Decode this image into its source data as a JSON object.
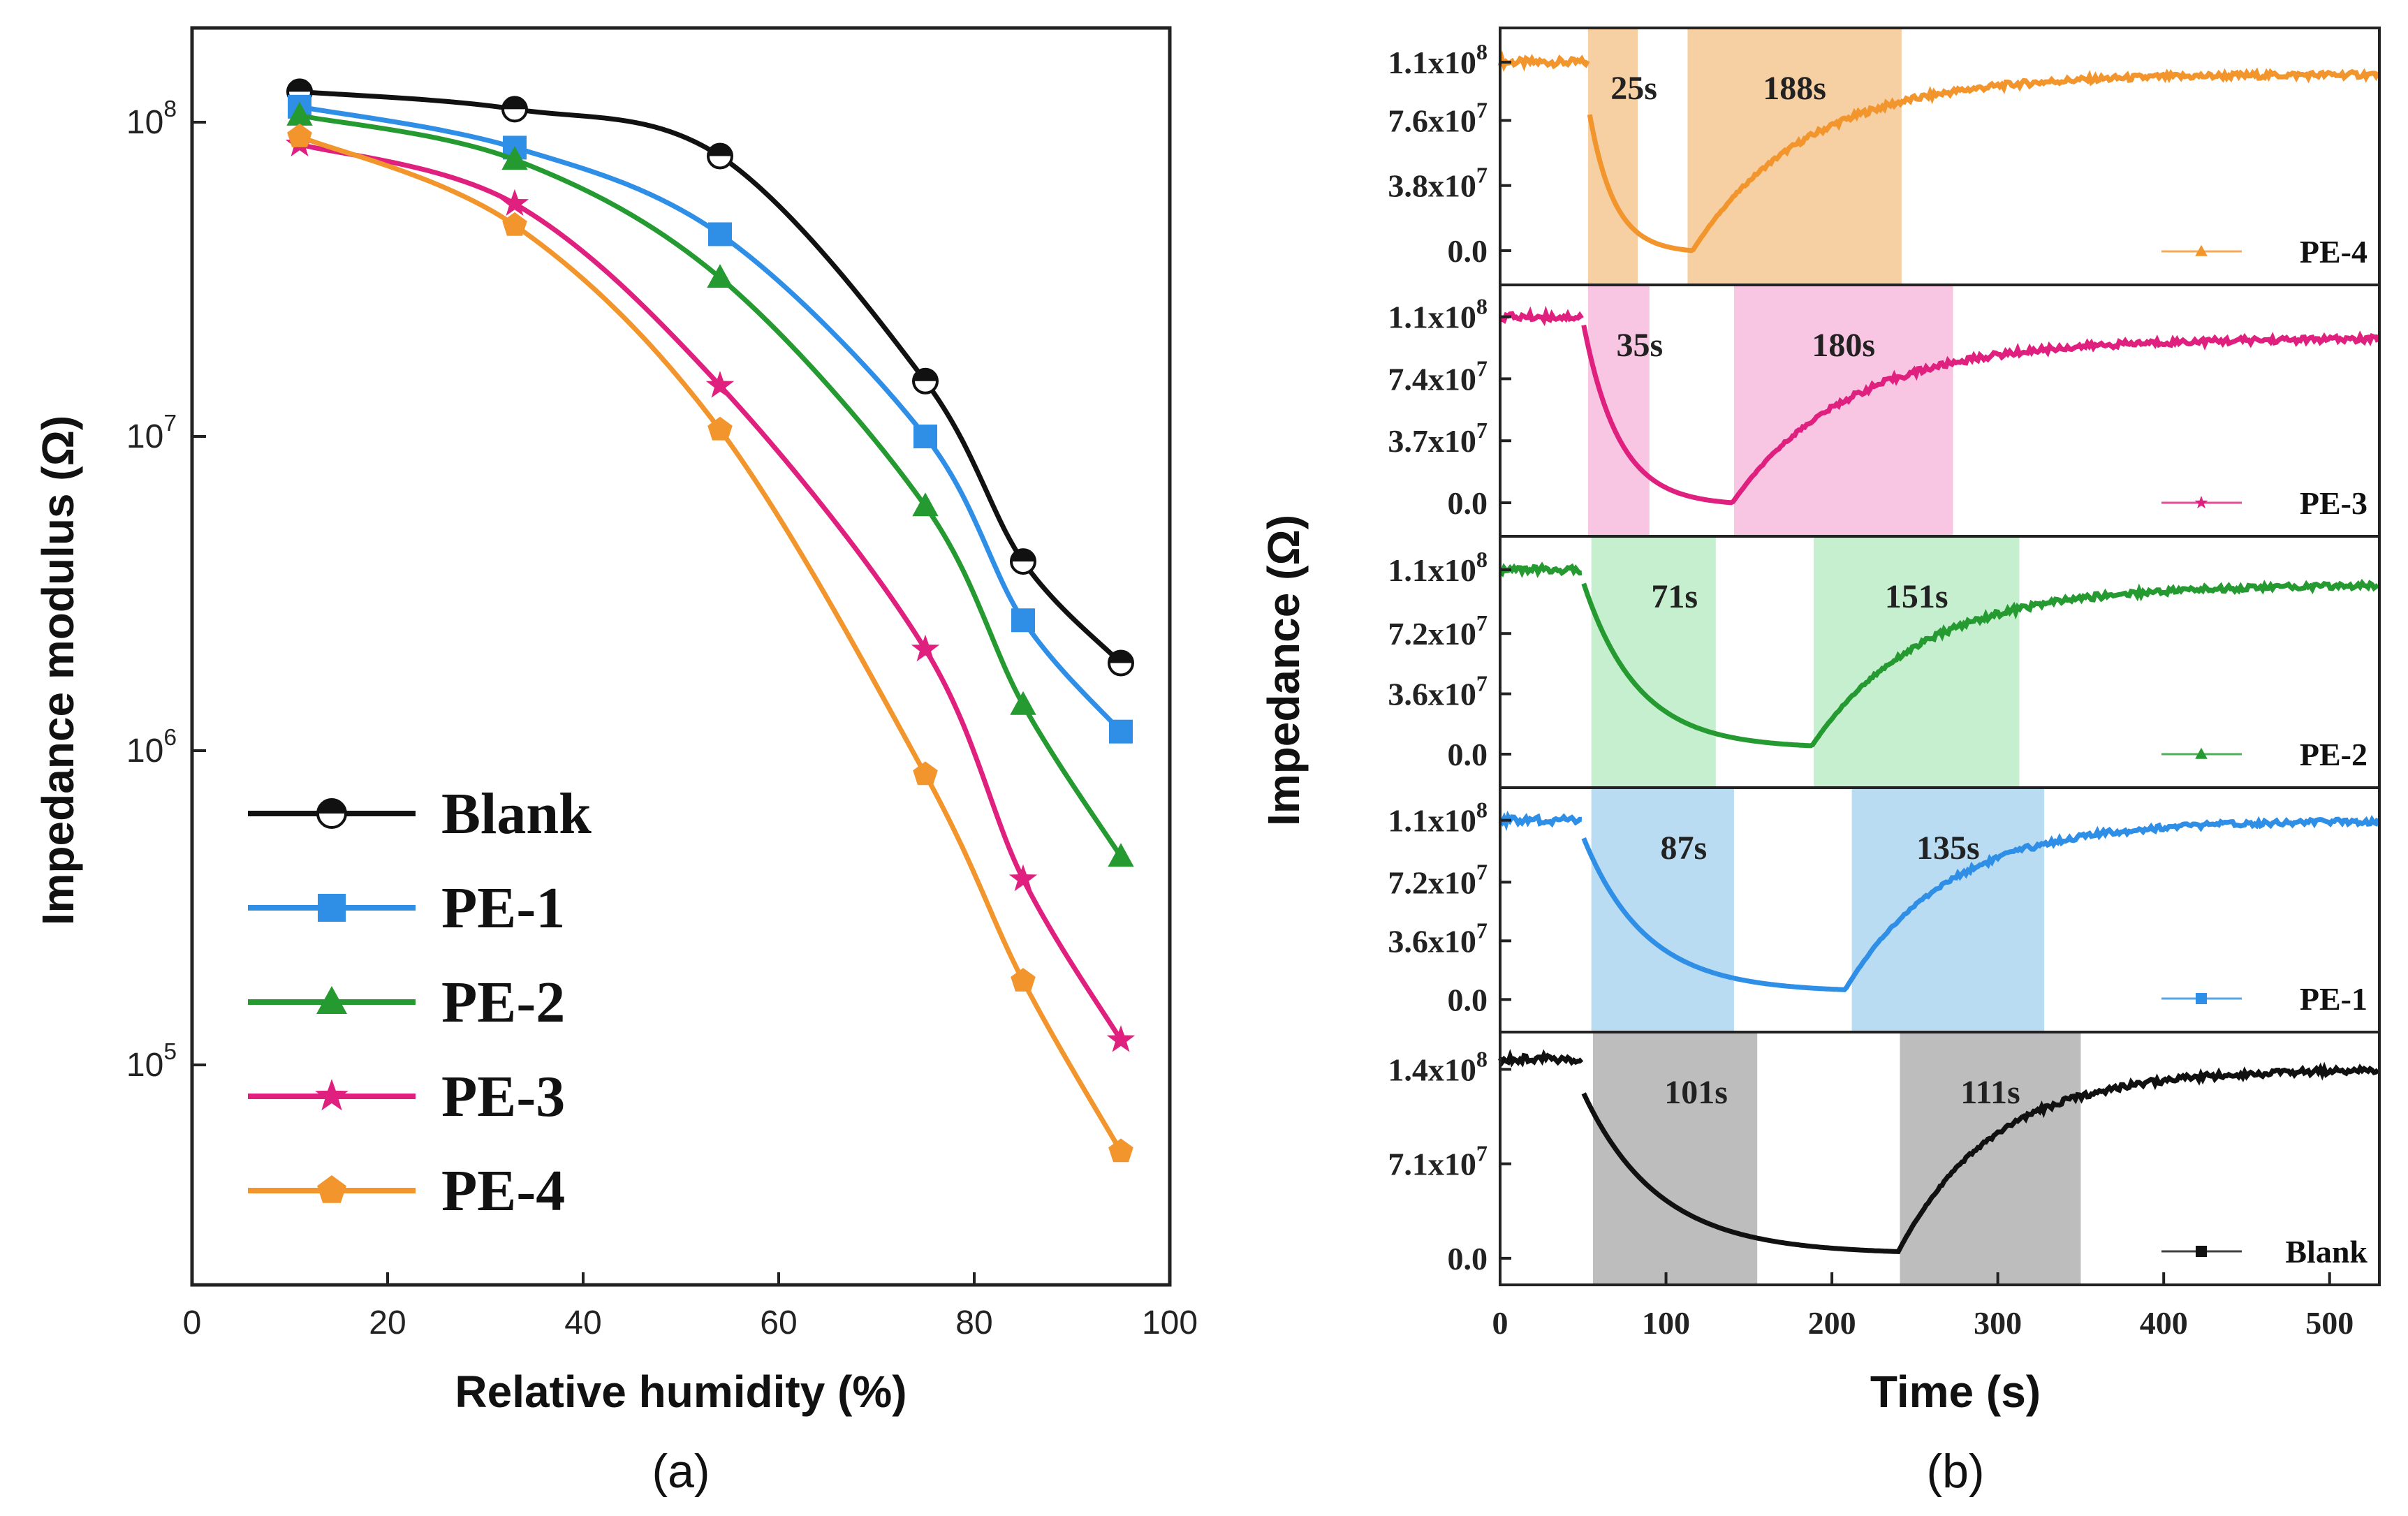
{
  "colors": {
    "Blank": "#111111",
    "PE-1": "#2f8fe6",
    "PE-2": "#249a31",
    "PE-3": "#e0207f",
    "PE-4": "#f2952c",
    "shade_Blank": "#bdbdbd",
    "shade_PE-1": "#b9dcf3",
    "shade_PE-2": "#c6efcf",
    "shade_PE-3": "#f8c6e2",
    "shade_PE-4": "#f6cfa3"
  },
  "chart_data": [
    {
      "id": "a",
      "panel_label": "(a)",
      "type": "line",
      "xlabel": "Relative humidity (%)",
      "ylabel": "Impedance modulus (Ω)",
      "xlim": [
        0,
        100
      ],
      "ylim_log10": [
        4.3,
        8.3
      ],
      "x_ticks": [
        "0",
        "20",
        "40",
        "60",
        "80",
        "100"
      ],
      "y_ticks": [
        {
          "base": "10",
          "exp": "5"
        },
        {
          "base": "10",
          "exp": "6"
        },
        {
          "base": "10",
          "exp": "7"
        },
        {
          "base": "10",
          "exp": "8"
        }
      ],
      "x": [
        11,
        33,
        54,
        75,
        85,
        95
      ],
      "series": [
        {
          "name": "Blank",
          "marker": "circle",
          "values": [
            125000000,
            110000000,
            78000000,
            15000000,
            4000000,
            1900000
          ]
        },
        {
          "name": "PE-1",
          "marker": "square",
          "values": [
            112000000,
            83000000,
            44000000,
            10000000,
            2600000,
            1150000
          ]
        },
        {
          "name": "PE-2",
          "marker": "triangle",
          "values": [
            105000000,
            76000000,
            32000000,
            6000000,
            1400000,
            460000
          ]
        },
        {
          "name": "PE-3",
          "marker": "star",
          "values": [
            85000000,
            55000000,
            14500000,
            2100000,
            390000,
            120000
          ]
        },
        {
          "name": "PE-4",
          "marker": "pentagon",
          "values": [
            90000000,
            47000000,
            10500000,
            840000,
            185000,
            53000
          ]
        }
      ],
      "legend": [
        "Blank",
        "PE-1",
        "PE-2",
        "PE-3",
        "PE-4"
      ]
    },
    {
      "id": "b",
      "panel_label": "(b)",
      "type": "line",
      "xlabel": "Time (s)",
      "ylabel": "Impedance (Ω)",
      "xlim": [
        0,
        530
      ],
      "x_ticks": [
        "0",
        "100",
        "200",
        "300",
        "400",
        "500"
      ],
      "subplots": [
        {
          "name": "PE-4",
          "ylim": [
            -20000000,
            130000000
          ],
          "y_ticks": [
            {
              "value": 110000000,
              "mant": "1.1x10",
              "exp": "8"
            },
            {
              "value": 76000000,
              "mant": "7.6x10",
              "exp": "7"
            },
            {
              "value": 38000000,
              "mant": "3.8x10",
              "exp": "7"
            },
            {
              "value": 0,
              "mant": "0.0",
              "exp": ""
            }
          ],
          "baseline": 110000000,
          "switch_time": 53,
          "min_time": 116,
          "min_value": 0,
          "recovery_level": 103000000,
          "start_value": 85000000,
          "response_band": [
            53,
            83
          ],
          "recovery_band": [
            113,
            242
          ],
          "response_label": "25s",
          "recovery_label": "188s"
        },
        {
          "name": "PE-3",
          "ylim": [
            -20000000,
            130000000
          ],
          "y_ticks": [
            {
              "value": 111000000,
              "mant": "1.1x10",
              "exp": "8"
            },
            {
              "value": 74000000,
              "mant": "7.4x10",
              "exp": "7"
            },
            {
              "value": 37000000,
              "mant": "3.7x10",
              "exp": "7"
            },
            {
              "value": 0,
              "mant": "0.0",
              "exp": ""
            }
          ],
          "baseline": 111000000,
          "switch_time": 50,
          "min_time": 140,
          "min_value": 0,
          "recovery_level": 98000000,
          "start_value": 108000000,
          "response_band": [
            53,
            90
          ],
          "recovery_band": [
            141,
            273
          ],
          "response_label": "35s",
          "recovery_label": "180s"
        },
        {
          "name": "PE-2",
          "ylim": [
            -20000000,
            130000000
          ],
          "y_ticks": [
            {
              "value": 110000000,
              "mant": "1.1x10",
              "exp": "8"
            },
            {
              "value": 72000000,
              "mant": "7.2x10",
              "exp": "7"
            },
            {
              "value": 36000000,
              "mant": "3.6x10",
              "exp": "7"
            },
            {
              "value": 0,
              "mant": "0.0",
              "exp": ""
            }
          ],
          "baseline": 110000000,
          "switch_time": 50,
          "min_time": 188,
          "min_value": 5000000,
          "recovery_level": 101000000,
          "start_value": 103000000,
          "response_band": [
            55,
            130
          ],
          "recovery_band": [
            189,
            313
          ],
          "response_label": "71s",
          "recovery_label": "151s"
        },
        {
          "name": "PE-1",
          "ylim": [
            -20000000,
            130000000
          ],
          "y_ticks": [
            {
              "value": 110000000,
              "mant": "1.1x10",
              "exp": "8"
            },
            {
              "value": 72000000,
              "mant": "7.2x10",
              "exp": "7"
            },
            {
              "value": 36000000,
              "mant": "3.6x10",
              "exp": "7"
            },
            {
              "value": 0,
              "mant": "0.0",
              "exp": ""
            }
          ],
          "baseline": 110000000,
          "switch_time": 50,
          "min_time": 208,
          "min_value": 6000000,
          "recovery_level": 110000000,
          "start_value": 100000000,
          "response_band": [
            55,
            141
          ],
          "recovery_band": [
            212,
            328
          ],
          "response_label": "87s",
          "recovery_label": "135s"
        },
        {
          "name": "Blank",
          "ylim": [
            -20000000,
            170000000
          ],
          "y_ticks": [
            {
              "value": 142000000,
              "mant": "1.4x10",
              "exp": "8"
            },
            {
              "value": 71000000,
              "mant": "7.1x10",
              "exp": "7"
            },
            {
              "value": 0,
              "mant": "0.0",
              "exp": ""
            }
          ],
          "baseline": 150000000,
          "switch_time": 50,
          "min_time": 240,
          "min_value": 5000000,
          "recovery_level": 142000000,
          "start_value": 125000000,
          "response_band": [
            56,
            155
          ],
          "recovery_band": [
            241,
            350
          ],
          "response_label": "101s",
          "recovery_label": "111s"
        }
      ]
    }
  ]
}
